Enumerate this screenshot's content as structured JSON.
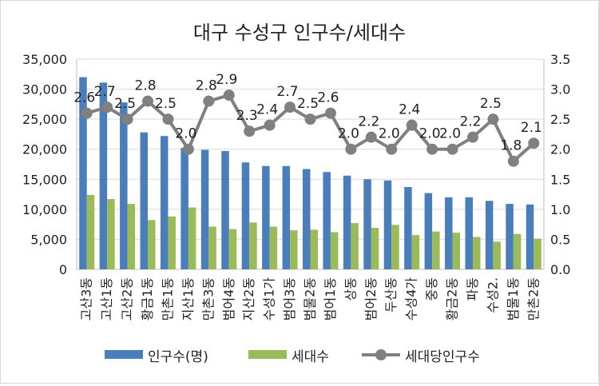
{
  "chart_data": {
    "type": "bar",
    "title": "대구 수성구 인구수/세대수",
    "categories": [
      "고산3동",
      "고산1동",
      "고산2동",
      "황금1동",
      "만촌1동",
      "지산1동",
      "만촌3동",
      "범어4동",
      "지산2동",
      "수성1가",
      "범어3동",
      "범물2동",
      "범어1동",
      "상동",
      "범어2동",
      "두산동",
      "수성4가",
      "중동",
      "황금2동",
      "파동",
      "수성2.",
      "범물1동",
      "만촌2동"
    ],
    "series": [
      {
        "name": "인구수(명)",
        "type": "bar",
        "axis": "left",
        "color": "#4a7ebb",
        "values": [
          32000,
          31100,
          27800,
          22800,
          22200,
          20200,
          19900,
          19700,
          17800,
          17200,
          17200,
          16700,
          16200,
          15600,
          15000,
          14800,
          13700,
          12700,
          12000,
          12000,
          11400,
          10900,
          10800
        ]
      },
      {
        "name": "세대수",
        "type": "bar",
        "axis": "left",
        "color": "#9bbb59",
        "values": [
          12400,
          11700,
          10900,
          8200,
          8800,
          10300,
          7100,
          6700,
          7800,
          7100,
          6500,
          6600,
          6200,
          7700,
          6900,
          7400,
          5700,
          6300,
          6100,
          5400,
          4600,
          5900,
          5100
        ]
      },
      {
        "name": "세대당인구수",
        "type": "line",
        "axis": "right",
        "color": "#808080",
        "values": [
          2.6,
          2.7,
          2.5,
          2.8,
          2.5,
          2.0,
          2.8,
          2.9,
          2.3,
          2.4,
          2.7,
          2.5,
          2.6,
          2.0,
          2.2,
          2.0,
          2.4,
          2.0,
          2.0,
          2.2,
          2.5,
          1.8,
          2.1
        ]
      }
    ],
    "line_labels": [
      "2.6",
      "2.7",
      "2.5",
      "2.8",
      "2.5",
      "2.0",
      "2.8",
      "2.9",
      "2.3",
      "2.4",
      "2.7",
      "2.5",
      "2.6",
      "2.0",
      "2.2",
      "2.0",
      "2.4",
      "2.0",
      "2.0",
      "2.2",
      "2.5",
      "1.8",
      "2.1"
    ],
    "y_left": {
      "ylim": [
        0,
        35000
      ],
      "ticks": [
        "0",
        "5,000",
        "10,000",
        "15,000",
        "20,000",
        "25,000",
        "30,000",
        "35,000"
      ]
    },
    "y_right": {
      "ylim": [
        0,
        3.5
      ],
      "ticks": [
        "0.0",
        "0.5",
        "1.0",
        "1.5",
        "2.0",
        "2.5",
        "3.0",
        "3.5"
      ]
    },
    "grid": true,
    "legend_position": "bottom"
  }
}
